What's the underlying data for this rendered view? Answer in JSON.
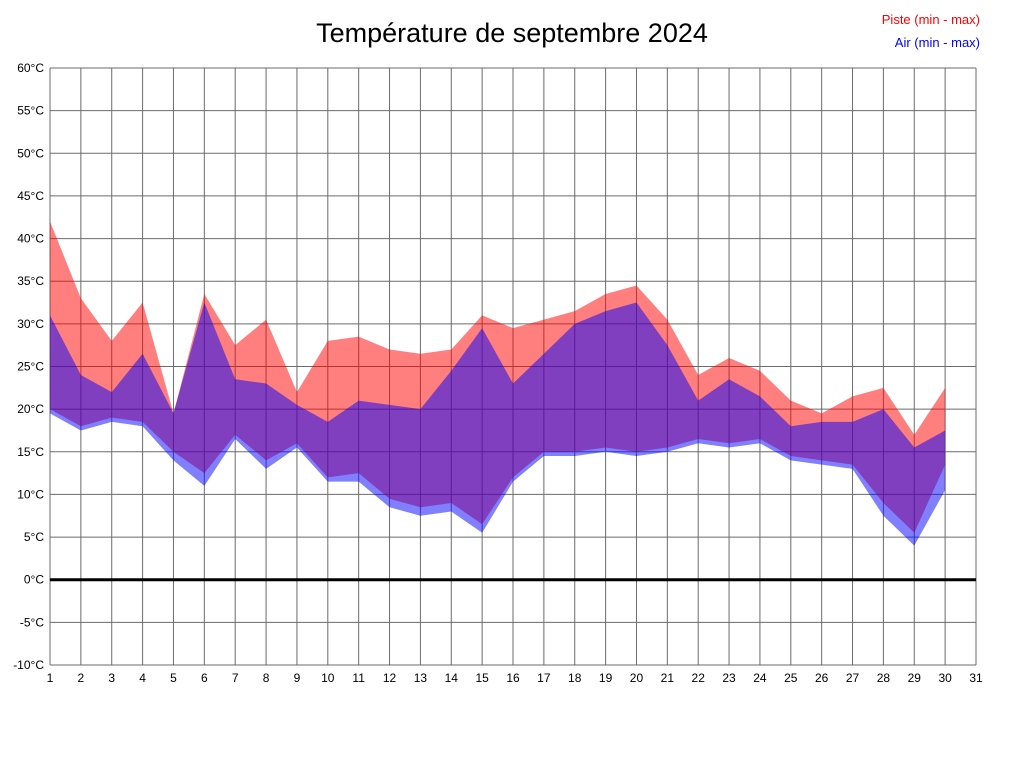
{
  "title": "Température de septembre 2024",
  "legend": [
    {
      "label": "Piste (min - max)",
      "color": "#ff0000"
    },
    {
      "label": "Air (min - max)",
      "color": "#0000ff"
    }
  ],
  "chart_data": {
    "type": "area",
    "title": "Température de septembre 2024",
    "xlabel": "",
    "ylabel": "",
    "unit": "°C",
    "xlim": [
      1,
      31
    ],
    "ylim": [
      -10,
      60
    ],
    "yticks": [
      -10,
      -5,
      0,
      5,
      10,
      15,
      20,
      25,
      30,
      35,
      40,
      45,
      50,
      55,
      60
    ],
    "grid": true,
    "zero_line_value": 0,
    "grid_color": "#6b6b6b",
    "zero_line_color": "#000000",
    "days": [
      1,
      2,
      3,
      4,
      5,
      6,
      7,
      8,
      9,
      10,
      11,
      12,
      13,
      14,
      15,
      16,
      17,
      18,
      19,
      20,
      21,
      22,
      23,
      24,
      25,
      26,
      27,
      28,
      29,
      30
    ],
    "series": [
      {
        "name": "Piste (min - max)",
        "color": "rgba(255,0,0,0.5)",
        "max": [
          42,
          33,
          28,
          32.5,
          19.5,
          33.5,
          27.5,
          30.5,
          22,
          28,
          28.5,
          27,
          26.5,
          27,
          31,
          29.5,
          30.5,
          31.5,
          33.5,
          34.5,
          30.5,
          24,
          26,
          24.5,
          21,
          19.5,
          21.5,
          22.5,
          17,
          22.5
        ],
        "min": [
          20,
          18,
          19,
          18.5,
          15,
          12.5,
          17,
          14,
          16,
          12,
          12.5,
          9.5,
          8.5,
          9,
          6.5,
          12,
          15,
          15,
          15.5,
          15,
          15.5,
          16.5,
          16,
          16.5,
          14.5,
          14,
          13.5,
          9,
          5.5,
          13.5
        ]
      },
      {
        "name": "Air (min - max)",
        "color": "rgba(0,0,255,0.5)",
        "max": [
          31,
          24,
          22,
          26.5,
          19.5,
          32.5,
          23.5,
          23,
          20.5,
          18.5,
          21,
          20.5,
          20,
          24.5,
          29.5,
          23,
          26.5,
          30,
          31.5,
          32.5,
          27.5,
          21,
          23.5,
          21.5,
          18,
          18.5,
          18.5,
          20,
          15.5,
          17.5
        ],
        "min": [
          19.5,
          17.5,
          18.5,
          18,
          14,
          11,
          16.5,
          13,
          15.5,
          11.5,
          11.5,
          8.5,
          7.5,
          8,
          5.5,
          11.5,
          14.5,
          14.5,
          15,
          14.5,
          15,
          16,
          15.5,
          16,
          14,
          13.5,
          13,
          7.5,
          4,
          10.5
        ]
      }
    ]
  }
}
